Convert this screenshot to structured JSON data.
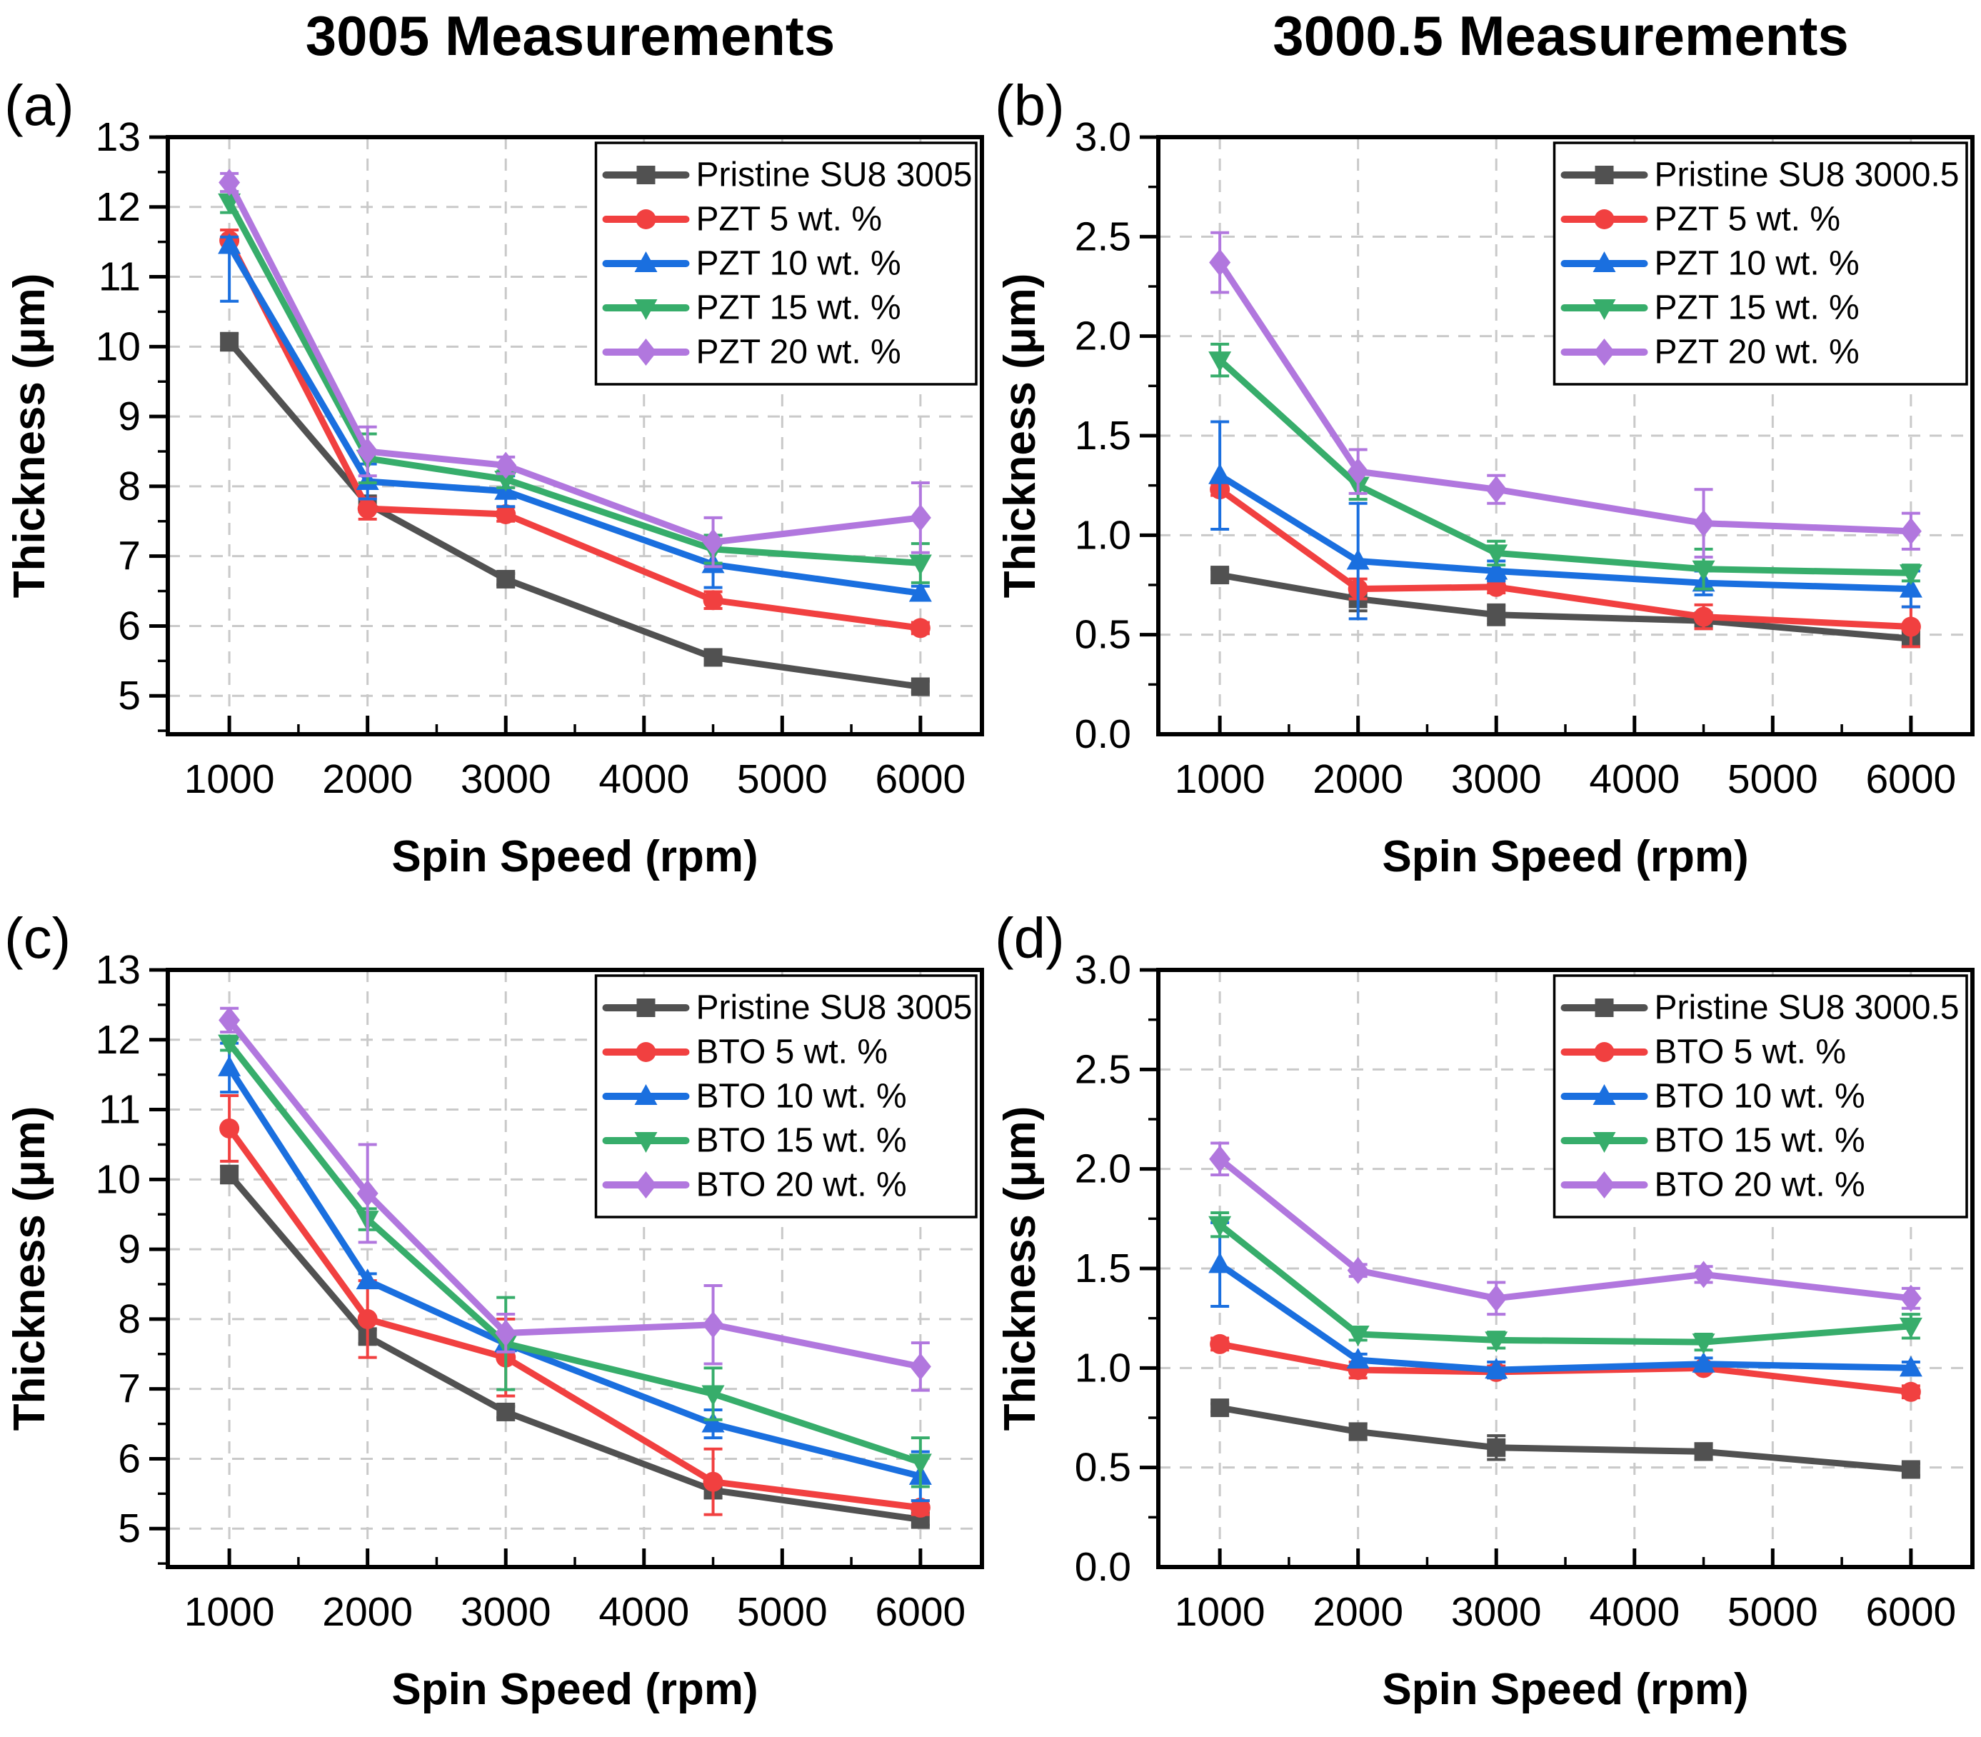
{
  "figure": {
    "left_title": "3005 Measurements",
    "right_title": "3000.5 Measurements"
  },
  "style": {
    "grid_color": "#c9c9c9",
    "frame_color": "#000000",
    "background": "#ffffff"
  },
  "chart_data": [
    {
      "panel_label": "(a)",
      "type": "line",
      "title": "3005 Measurements",
      "xlabel": "Spin Speed (rpm)",
      "ylabel": "Thickness (μm)",
      "x": [
        1000,
        2000,
        3000,
        4500,
        6000
      ],
      "xlim": [
        555,
        6445
      ],
      "xticks": [
        1000,
        2000,
        3000,
        4000,
        5000,
        6000
      ],
      "x_minor_step": 500,
      "ylim": [
        4.45,
        13
      ],
      "yticks": [
        5,
        6,
        7,
        8,
        9,
        10,
        11,
        12,
        13
      ],
      "y_minor_step": 0.5,
      "ytick_decimals": 0,
      "grid": true,
      "legend_position": "top-right",
      "series": [
        {
          "name": "Pristine SU8 3005",
          "color": "#515151",
          "marker": "square",
          "values": [
            10.07,
            7.75,
            6.67,
            5.55,
            5.13
          ],
          "errors": [
            0.12,
            0.1,
            0.08,
            0.1,
            0.08
          ]
        },
        {
          "name": "PZT 5 wt. %",
          "color": "#F14040",
          "marker": "circle",
          "values": [
            11.52,
            7.68,
            7.6,
            6.37,
            5.97
          ],
          "errors": [
            0.15,
            0.15,
            0.1,
            0.12,
            0.08
          ]
        },
        {
          "name": "PZT 10 wt. %",
          "color": "#1A6FDF",
          "marker": "triangle-up",
          "values": [
            11.45,
            8.07,
            7.93,
            6.88,
            6.47
          ],
          "errors": [
            [
              0.8,
              0.12
            ],
            0.25,
            0.22,
            0.33,
            0.1
          ]
        },
        {
          "name": "PZT 15 wt. %",
          "color": "#37AD6B",
          "marker": "triangle-down",
          "values": [
            12.07,
            8.4,
            8.1,
            7.1,
            6.9
          ],
          "errors": [
            0.15,
            0.35,
            0.12,
            0.2,
            0.28
          ]
        },
        {
          "name": "PZT 20 wt. %",
          "color": "#B177DE",
          "marker": "diamond",
          "values": [
            12.35,
            8.5,
            8.3,
            7.2,
            7.55
          ],
          "errors": [
            0.13,
            0.35,
            0.12,
            0.35,
            0.5
          ]
        }
      ]
    },
    {
      "panel_label": "(b)",
      "type": "line",
      "title": "3000.5 Measurements",
      "xlabel": "Spin Speed (rpm)",
      "ylabel": "Thickness (μm)",
      "x": [
        1000,
        2000,
        3000,
        4500,
        6000
      ],
      "xlim": [
        555,
        6445
      ],
      "xticks": [
        1000,
        2000,
        3000,
        4000,
        5000,
        6000
      ],
      "x_minor_step": 500,
      "ylim": [
        0,
        3
      ],
      "yticks": [
        0,
        0.5,
        1,
        1.5,
        2,
        2.5,
        3
      ],
      "y_minor_step": 0.25,
      "ytick_decimals": 1,
      "grid": true,
      "legend_position": "top-right",
      "series": [
        {
          "name": "Pristine SU8 3000.5",
          "color": "#515151",
          "marker": "square",
          "values": [
            0.8,
            0.68,
            0.6,
            0.57,
            0.48
          ],
          "errors": [
            0.03,
            0.06,
            0.05,
            0.03,
            0.04
          ]
        },
        {
          "name": "PZT 5 wt. %",
          "color": "#F14040",
          "marker": "circle",
          "values": [
            1.23,
            0.73,
            0.74,
            0.59,
            0.54
          ],
          "errors": [
            0.03,
            0.05,
            0.03,
            0.06,
            0.1
          ]
        },
        {
          "name": "PZT 10 wt. %",
          "color": "#1A6FDF",
          "marker": "triangle-up",
          "values": [
            1.3,
            0.87,
            0.82,
            0.76,
            0.73
          ],
          "errors": [
            0.27,
            0.29,
            0.05,
            0.06,
            0.09
          ]
        },
        {
          "name": "PZT 15 wt. %",
          "color": "#37AD6B",
          "marker": "triangle-down",
          "values": [
            1.88,
            1.25,
            0.91,
            0.83,
            0.81
          ],
          "errors": [
            0.08,
            0.07,
            0.06,
            0.1,
            0.04
          ]
        },
        {
          "name": "PZT 20 wt. %",
          "color": "#B177DE",
          "marker": "diamond",
          "values": [
            2.37,
            1.32,
            1.23,
            1.06,
            1.02
          ],
          "errors": [
            0.15,
            0.11,
            0.07,
            0.17,
            0.09
          ]
        }
      ]
    },
    {
      "panel_label": "(c)",
      "type": "line",
      "title": "3005 Measurements",
      "xlabel": "Spin Speed (rpm)",
      "ylabel": "Thickness (μm)",
      "x": [
        1000,
        2000,
        3000,
        4500,
        6000
      ],
      "xlim": [
        555,
        6445
      ],
      "xticks": [
        1000,
        2000,
        3000,
        4000,
        5000,
        6000
      ],
      "x_minor_step": 500,
      "ylim": [
        4.45,
        13
      ],
      "yticks": [
        5,
        6,
        7,
        8,
        9,
        10,
        11,
        12,
        13
      ],
      "y_minor_step": 0.5,
      "ytick_decimals": 0,
      "grid": true,
      "legend_position": "top-right",
      "series": [
        {
          "name": "Pristine SU8 3005",
          "color": "#515151",
          "marker": "square",
          "values": [
            10.07,
            7.75,
            6.67,
            5.55,
            5.13
          ],
          "errors": [
            0.12,
            0.1,
            0.08,
            0.1,
            0.08
          ]
        },
        {
          "name": "BTO 5 wt. %",
          "color": "#F14040",
          "marker": "circle",
          "values": [
            10.73,
            8.0,
            7.45,
            5.67,
            5.3
          ],
          "errors": [
            0.47,
            0.55,
            0.55,
            0.47,
            0.1
          ]
        },
        {
          "name": "BTO 10 wt. %",
          "color": "#1A6FDF",
          "marker": "triangle-up",
          "values": [
            11.6,
            8.55,
            7.65,
            6.5,
            5.75
          ],
          "errors": [
            0.35,
            0.1,
            0.12,
            0.2,
            0.35
          ]
        },
        {
          "name": "BTO 15 wt. %",
          "color": "#37AD6B",
          "marker": "triangle-down",
          "values": [
            11.95,
            9.43,
            7.65,
            6.93,
            5.95
          ],
          "errors": [
            0.1,
            0.15,
            0.66,
            0.37,
            0.35
          ]
        },
        {
          "name": "BTO 20 wt. %",
          "color": "#B177DE",
          "marker": "diamond",
          "values": [
            12.28,
            9.8,
            7.8,
            7.92,
            7.32
          ],
          "errors": [
            0.17,
            0.7,
            0.27,
            0.56,
            0.34
          ]
        }
      ]
    },
    {
      "panel_label": "(d)",
      "type": "line",
      "title": "3000.5 Measurements",
      "xlabel": "Spin Speed (rpm)",
      "ylabel": "Thickness (μm)",
      "x": [
        1000,
        2000,
        3000,
        4500,
        6000
      ],
      "xlim": [
        555,
        6445
      ],
      "xticks": [
        1000,
        2000,
        3000,
        4000,
        5000,
        6000
      ],
      "x_minor_step": 500,
      "ylim": [
        0,
        3
      ],
      "yticks": [
        0,
        0.5,
        1,
        1.5,
        2,
        2.5,
        3
      ],
      "y_minor_step": 0.25,
      "ytick_decimals": 1,
      "grid": true,
      "legend_position": "top-right",
      "series": [
        {
          "name": "Pristine SU8 3000.5",
          "color": "#515151",
          "marker": "square",
          "values": [
            0.8,
            0.68,
            0.6,
            0.58,
            0.49
          ],
          "errors": [
            0.02,
            0.04,
            0.06,
            0.04,
            0.03
          ]
        },
        {
          "name": "BTO 5 wt. %",
          "color": "#F14040",
          "marker": "circle",
          "values": [
            1.12,
            0.99,
            0.98,
            1.0,
            0.88
          ],
          "errors": [
            0.03,
            0.04,
            0.03,
            0.02,
            0.03
          ]
        },
        {
          "name": "BTO 10 wt. %",
          "color": "#1A6FDF",
          "marker": "triangle-up",
          "values": [
            1.52,
            1.04,
            0.99,
            1.02,
            1.0
          ],
          "errors": [
            0.21,
            0.03,
            0.04,
            0.03,
            0.03
          ]
        },
        {
          "name": "BTO 15 wt. %",
          "color": "#37AD6B",
          "marker": "triangle-down",
          "values": [
            1.72,
            1.17,
            1.14,
            1.13,
            1.21
          ],
          "errors": [
            0.06,
            0.03,
            0.04,
            0.04,
            0.06
          ]
        },
        {
          "name": "BTO 20 wt. %",
          "color": "#B177DE",
          "marker": "diamond",
          "values": [
            2.05,
            1.49,
            1.35,
            1.47,
            1.35
          ],
          "errors": [
            0.08,
            0.03,
            0.08,
            0.04,
            0.05
          ]
        }
      ]
    }
  ]
}
